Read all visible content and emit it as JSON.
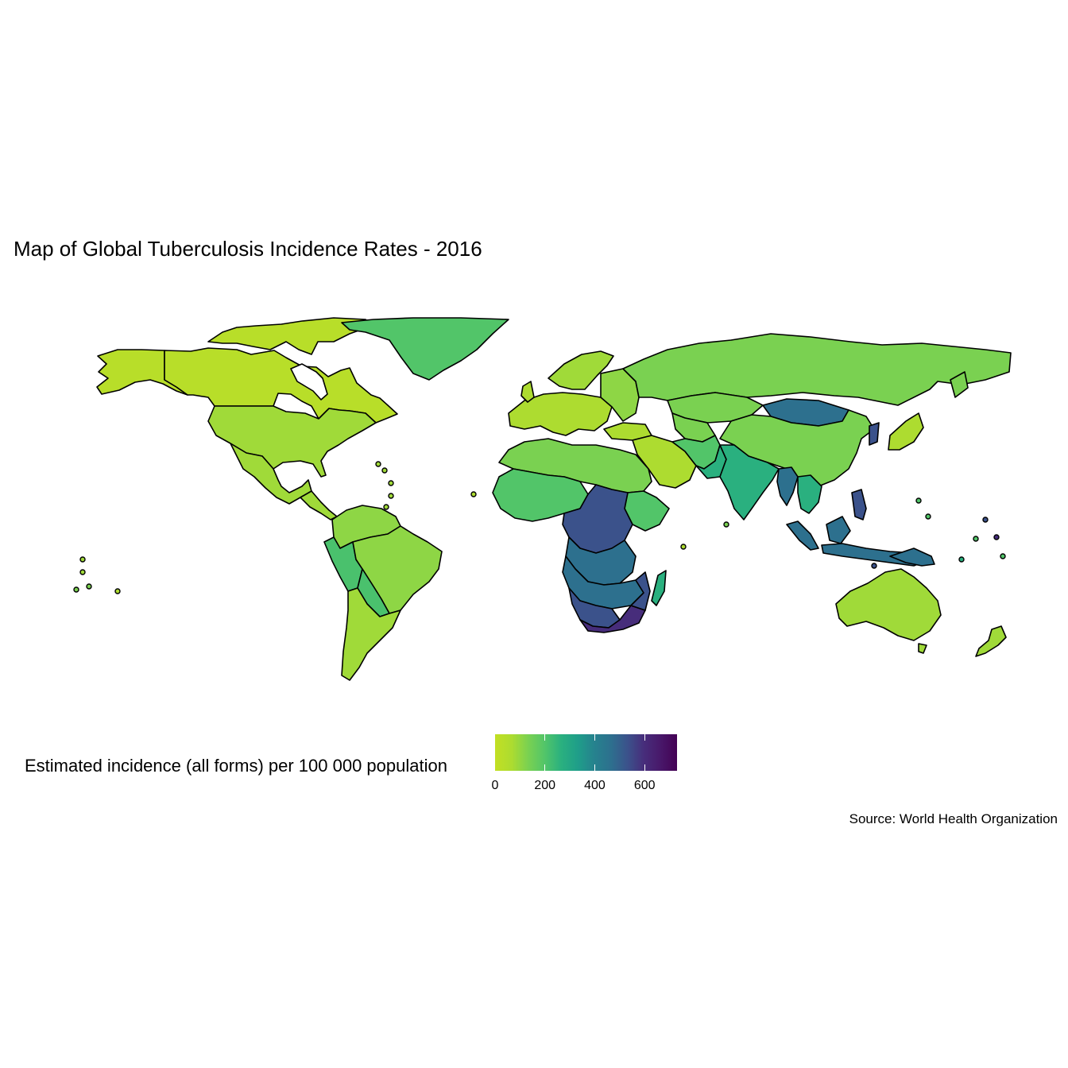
{
  "title": "Map of Global Tuberculosis Incidence Rates - 2016",
  "caption": "Source: World Health Organization",
  "legend": {
    "title": "Estimated incidence (all forms) per 100 000 population",
    "range": [
      0,
      730
    ],
    "ticks": [
      "0",
      "200",
      "400",
      "600"
    ],
    "colors": [
      "#c2df23",
      "#addc30",
      "#7ad151",
      "#52c569",
      "#2ab07f",
      "#1f9e89",
      "#26828e",
      "#2d708e",
      "#3b528b",
      "#472d7b",
      "#48186a",
      "#440154"
    ]
  },
  "chart_data": {
    "type": "choropleth",
    "title": "Map of Global Tuberculosis Incidence Rates - 2016",
    "value_label": "Estimated incidence (all forms) per 100 000 population",
    "scale": "viridis (reversed)",
    "range": [
      0,
      730
    ],
    "regions": [
      {
        "name": "Canada",
        "value": 5
      },
      {
        "name": "United States",
        "value": 3
      },
      {
        "name": "Mexico",
        "value": 22
      },
      {
        "name": "Greenland",
        "value": 110
      },
      {
        "name": "Brazil",
        "value": 42
      },
      {
        "name": "Argentina",
        "value": 26
      },
      {
        "name": "Bolivia",
        "value": 114
      },
      {
        "name": "Peru",
        "value": 117
      },
      {
        "name": "Colombia",
        "value": 31
      },
      {
        "name": "Europe (west)",
        "value": 8
      },
      {
        "name": "Russia",
        "value": 66
      },
      {
        "name": "Kazakhstan",
        "value": 67
      },
      {
        "name": "China",
        "value": 64
      },
      {
        "name": "Mongolia",
        "value": 428
      },
      {
        "name": "India",
        "value": 211
      },
      {
        "name": "Pakistan",
        "value": 268
      },
      {
        "name": "Saudi Arabia",
        "value": 10
      },
      {
        "name": "North Africa",
        "value": 40
      },
      {
        "name": "West Africa",
        "value": 150
      },
      {
        "name": "Ethiopia",
        "value": 177
      },
      {
        "name": "DR Congo",
        "value": 323
      },
      {
        "name": "Central African Republic",
        "value": 423
      },
      {
        "name": "Angola",
        "value": 370
      },
      {
        "name": "Zambia",
        "value": 376
      },
      {
        "name": "Mozambique",
        "value": 551
      },
      {
        "name": "Namibia",
        "value": 446
      },
      {
        "name": "Botswana",
        "value": 326
      },
      {
        "name": "South Africa",
        "value": 781
      },
      {
        "name": "Lesotho",
        "value": 724
      },
      {
        "name": "Madagascar",
        "value": 236
      },
      {
        "name": "Myanmar",
        "value": 361
      },
      {
        "name": "Thailand",
        "value": 172
      },
      {
        "name": "Indonesia",
        "value": 391
      },
      {
        "name": "Philippines",
        "value": 554
      },
      {
        "name": "Papua New Guinea",
        "value": 432
      },
      {
        "name": "Australia",
        "value": 6
      },
      {
        "name": "New Zealand",
        "value": 7
      },
      {
        "name": "Japan",
        "value": 15
      },
      {
        "name": "North Korea",
        "value": 513
      }
    ]
  }
}
